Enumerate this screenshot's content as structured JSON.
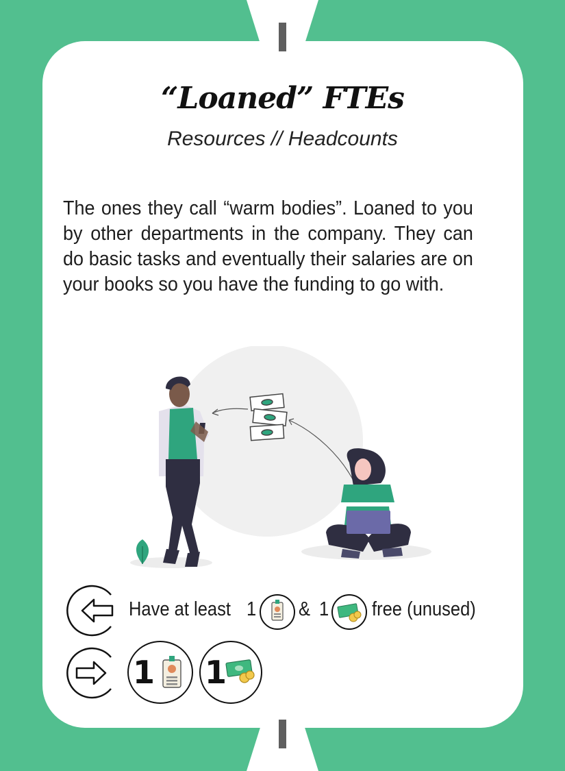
{
  "card": {
    "title": "“Loaned” FTEs",
    "subtitle": "Resources // Headcounts",
    "description": "The ones they call “warm bodies”. Loaned to you by other departments in the company. They can do basic tasks and eventually their salaries are on your books so you have the funding to go with."
  },
  "requirement": {
    "prefix": "Have at least",
    "count1": "1",
    "connector": "&",
    "count2": "1",
    "suffix": "free (unused)"
  },
  "reward": {
    "count1": "1",
    "count2": "1"
  },
  "colors": {
    "background": "#52bf8f",
    "card": "#ffffff",
    "accent": "#2fa57e"
  },
  "icons": [
    "input-arrow-icon",
    "output-arrow-icon",
    "badge-icon",
    "money-icon"
  ]
}
